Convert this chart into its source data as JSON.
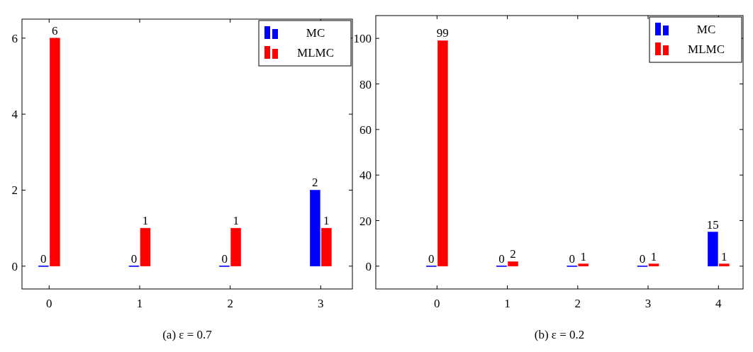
{
  "chart_data": [
    {
      "type": "bar",
      "title": "(a) ε = 0.7",
      "x": [
        0,
        1,
        2,
        3
      ],
      "xlim": [
        -0.3,
        3.35
      ],
      "xticks": [
        0,
        1,
        2,
        3
      ],
      "ylim": [
        -0.6,
        6.5
      ],
      "yticks": [
        0,
        2,
        4,
        6
      ],
      "legend": "top right",
      "data_labels": true,
      "grid": false,
      "series": [
        {
          "name": "MC",
          "color": "#0000ff",
          "values": [
            0,
            0,
            0,
            2
          ]
        },
        {
          "name": "MLMC",
          "color": "#ff0000",
          "values": [
            6,
            1,
            1,
            1
          ]
        }
      ]
    },
    {
      "type": "bar",
      "title": "(b) ε = 0.2",
      "x": [
        0,
        1,
        2,
        3,
        4
      ],
      "xlim": [
        -0.87,
        4.35
      ],
      "xticks": [
        0,
        1,
        2,
        3,
        4
      ],
      "ylim": [
        -10,
        110
      ],
      "yticks": [
        0,
        20,
        40,
        60,
        80,
        100
      ],
      "legend": "top right",
      "data_labels": true,
      "grid": false,
      "series": [
        {
          "name": "MC",
          "color": "#0000ff",
          "values": [
            0,
            0,
            0,
            0,
            15
          ]
        },
        {
          "name": "MLMC",
          "color": "#ff0000",
          "values": [
            99,
            2,
            1,
            1,
            1
          ]
        }
      ]
    }
  ]
}
